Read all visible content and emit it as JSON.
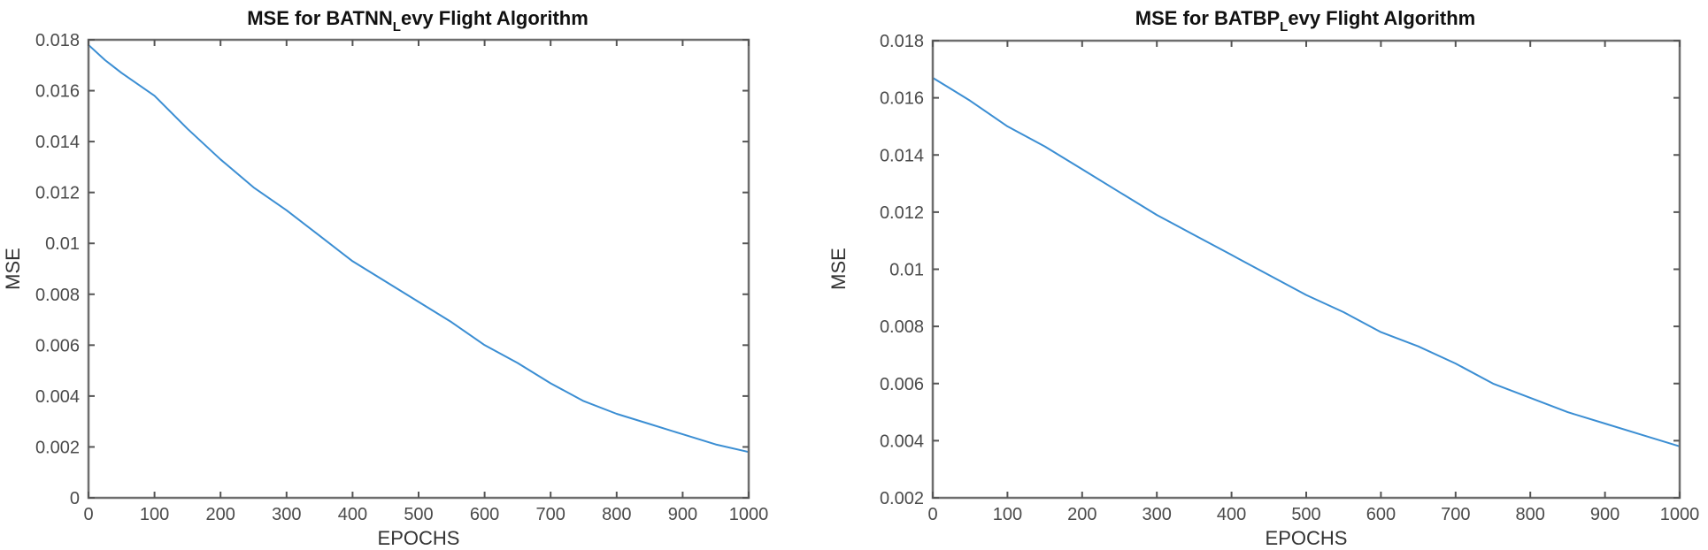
{
  "chart_data": [
    {
      "type": "line",
      "title": "MSE for BATNN",
      "title_subscript": "L",
      "title_suffix": "evy Flight Algorithm",
      "xlabel": "EPOCHS",
      "ylabel": "MSE",
      "xlim": [
        0,
        1000
      ],
      "ylim": [
        0,
        0.018
      ],
      "grid": false,
      "legend": null,
      "xticks": [
        0,
        100,
        200,
        300,
        400,
        500,
        600,
        700,
        800,
        900,
        1000
      ],
      "xtick_labels": [
        "0",
        "100",
        "200",
        "300",
        "400",
        "500",
        "600",
        "700",
        "800",
        "900",
        "1000"
      ],
      "yticks": [
        0,
        0.002,
        0.004,
        0.006,
        0.008,
        0.01,
        0.012,
        0.014,
        0.016,
        0.018
      ],
      "ytick_labels": [
        "0",
        "0.002",
        "0.004",
        "0.006",
        "0.008",
        "0.01",
        "0.012",
        "0.014",
        "0.016",
        "0.018"
      ],
      "series": [
        {
          "name": "MSE",
          "color": "#3b8ed3",
          "x": [
            0,
            25,
            50,
            100,
            150,
            200,
            250,
            300,
            350,
            400,
            450,
            500,
            550,
            600,
            650,
            700,
            750,
            800,
            850,
            900,
            950,
            1000
          ],
          "values": [
            0.0178,
            0.0172,
            0.0167,
            0.0158,
            0.0145,
            0.0133,
            0.0122,
            0.0113,
            0.0103,
            0.0093,
            0.0085,
            0.0077,
            0.0069,
            0.006,
            0.0053,
            0.0045,
            0.0038,
            0.0033,
            0.0029,
            0.0025,
            0.0021,
            0.0018
          ]
        }
      ]
    },
    {
      "type": "line",
      "title": "MSE for BATBP",
      "title_subscript": "L",
      "title_suffix": "evy Flight Algorithm",
      "xlabel": "EPOCHS",
      "ylabel": "MSE",
      "xlim": [
        0,
        1000
      ],
      "ylim": [
        0.002,
        0.018
      ],
      "grid": false,
      "legend": null,
      "xticks": [
        0,
        100,
        200,
        300,
        400,
        500,
        600,
        700,
        800,
        900,
        1000
      ],
      "xtick_labels": [
        "0",
        "100",
        "200",
        "300",
        "400",
        "500",
        "600",
        "700",
        "800",
        "900",
        "1000"
      ],
      "yticks": [
        0.002,
        0.004,
        0.006,
        0.008,
        0.01,
        0.012,
        0.014,
        0.016,
        0.018
      ],
      "ytick_labels": [
        "0.002",
        "0.004",
        "0.006",
        "0.008",
        "0.01",
        "0.012",
        "0.014",
        "0.016",
        "0.018"
      ],
      "series": [
        {
          "name": "MSE",
          "color": "#3b8ed3",
          "x": [
            0,
            25,
            50,
            100,
            150,
            200,
            250,
            300,
            350,
            400,
            450,
            500,
            550,
            600,
            650,
            700,
            750,
            800,
            850,
            900,
            950,
            1000
          ],
          "values": [
            0.0167,
            0.0163,
            0.0159,
            0.015,
            0.0143,
            0.0135,
            0.0127,
            0.0119,
            0.0112,
            0.0105,
            0.0098,
            0.0091,
            0.0085,
            0.0078,
            0.0073,
            0.0067,
            0.006,
            0.0055,
            0.005,
            0.0046,
            0.0042,
            0.0038
          ]
        }
      ]
    }
  ]
}
